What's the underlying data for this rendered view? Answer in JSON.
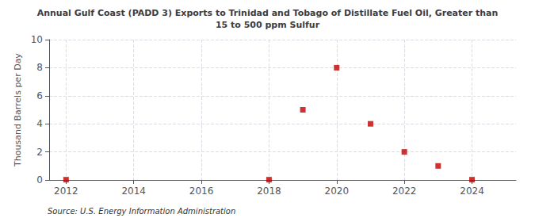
{
  "chart_data": {
    "type": "scatter",
    "title": "Annual Gulf Coast (PADD 3) Exports to Trinidad and Tobago of Distillate Fuel Oil, Greater than\n15 to 500 ppm Sulfur",
    "ylabel": "Thousand Barrels per Day",
    "annotations": [
      "Source: U.S. Energy Information Administration"
    ],
    "x": [
      2012,
      2018,
      2019,
      2020,
      2021,
      2022,
      2023,
      2024
    ],
    "values": [
      0.02,
      0.02,
      5.0,
      8.0,
      4.0,
      2.0,
      1.0,
      0.02
    ],
    "color": "#c00000",
    "marker": "square",
    "xlim": [
      2011.5,
      2025.3
    ],
    "xticks": [
      2012,
      2014,
      2016,
      2018,
      2020,
      2022,
      2024
    ],
    "ylim": [
      0,
      10
    ],
    "yticks": [
      0,
      2,
      4,
      6,
      8,
      10
    ],
    "grid": true
  }
}
